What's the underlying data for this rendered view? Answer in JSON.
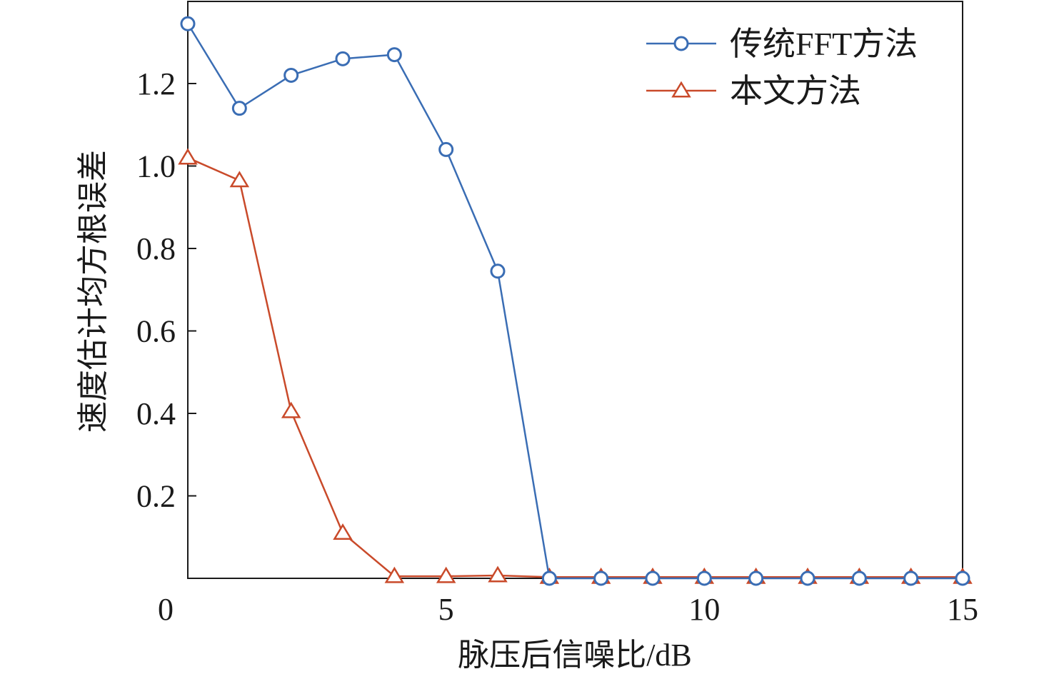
{
  "chart_data": {
    "type": "line",
    "title": "",
    "xlabel": "脉压后信噪比/dB",
    "ylabel": "速度估计均方根误差",
    "xlim": [
      0,
      15
    ],
    "ylim": [
      0,
      1.35
    ],
    "x_ticks": [
      5,
      10,
      15
    ],
    "x_tick_labels": [
      "5",
      "10",
      "15"
    ],
    "origin_label": "0",
    "y_ticks": [
      0.2,
      0.4,
      0.6,
      0.8,
      1.0,
      1.2
    ],
    "y_tick_labels": [
      "0.2",
      "0.4",
      "0.6",
      "0.8",
      "1.0",
      "1.2"
    ],
    "grid": false,
    "legend_position": "top-right",
    "x": [
      0,
      1,
      2,
      3,
      4,
      5,
      6,
      7,
      8,
      9,
      10,
      11,
      12,
      13,
      14,
      15
    ],
    "series": [
      {
        "name": "传统FFT方法",
        "marker": "circle",
        "color": "#3a6db4",
        "values": [
          1.345,
          1.14,
          1.22,
          1.26,
          1.27,
          1.04,
          0.745,
          0.0,
          0.0,
          0.0,
          0.0,
          0.0,
          0.0,
          0.0,
          0.0,
          0.0
        ]
      },
      {
        "name": "本文方法",
        "marker": "triangle",
        "color": "#c94a2a",
        "values": [
          1.02,
          0.965,
          0.405,
          0.11,
          0.005,
          0.005,
          0.007,
          0.003,
          0.003,
          0.003,
          0.003,
          0.003,
          0.003,
          0.003,
          0.003,
          0.003
        ]
      }
    ]
  }
}
